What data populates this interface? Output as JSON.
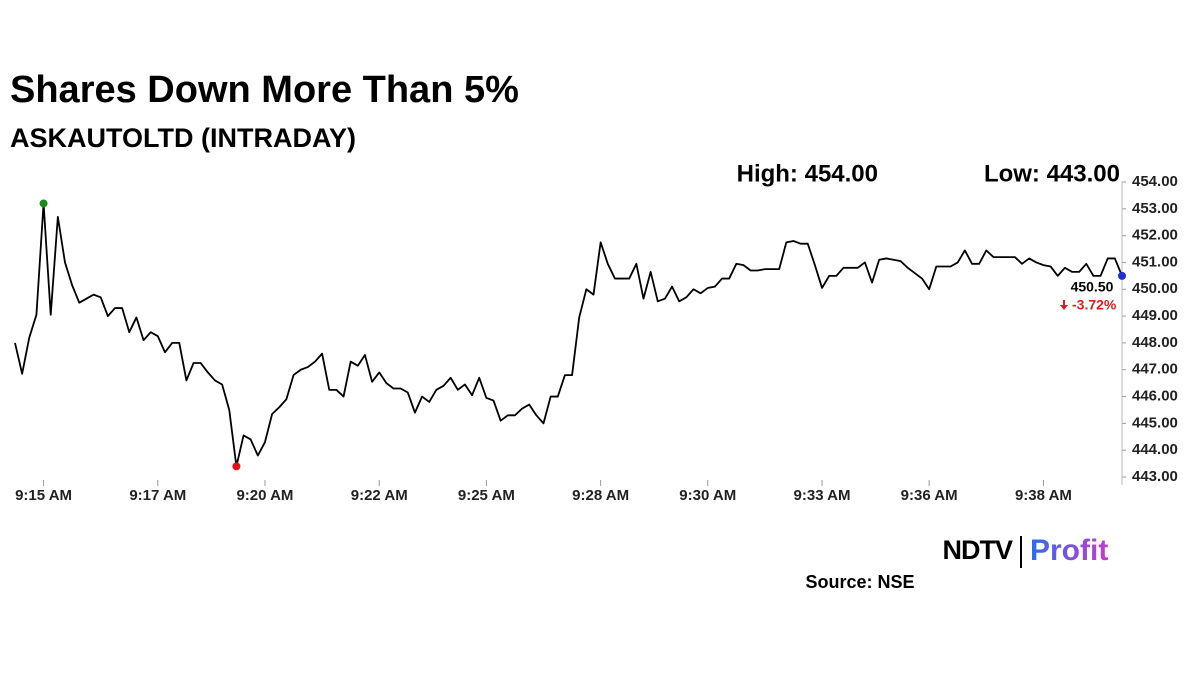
{
  "chart_data": {
    "type": "line",
    "title": "Shares Down More Than 5%",
    "subtitle": "ASKAUTOLTD (INTRADAY)",
    "high_text": "High: 454.00",
    "low_text": "Low: 443.00",
    "last_label": "450.50",
    "change_label": "-3.72%",
    "source": "Source: NSE",
    "logo": {
      "left": "NDTV",
      "right": "Profit"
    },
    "categories": [
      null,
      null,
      null,
      null,
      "9:15 AM",
      null,
      null,
      null,
      null,
      null,
      null,
      null,
      null,
      null,
      null,
      null,
      null,
      null,
      null,
      null,
      "9:17 AM",
      null,
      null,
      null,
      null,
      null,
      null,
      null,
      null,
      null,
      null,
      null,
      null,
      null,
      null,
      "9:20 AM",
      null,
      null,
      null,
      null,
      null,
      null,
      null,
      null,
      null,
      null,
      null,
      null,
      null,
      null,
      null,
      "9:22 AM",
      null,
      null,
      null,
      null,
      null,
      null,
      null,
      null,
      null,
      null,
      null,
      null,
      null,
      null,
      "9:25 AM",
      null,
      null,
      null,
      null,
      null,
      null,
      null,
      null,
      null,
      null,
      null,
      null,
      null,
      null,
      null,
      "9:28 AM",
      null,
      null,
      null,
      null,
      null,
      null,
      null,
      null,
      null,
      null,
      null,
      null,
      null,
      null,
      "9:30 AM",
      null,
      null,
      null,
      null,
      null,
      null,
      null,
      null,
      null,
      null,
      null,
      null,
      null,
      null,
      null,
      "9:33 AM",
      null,
      null,
      null,
      null,
      null,
      null,
      null,
      null,
      null,
      null,
      null,
      null,
      null,
      null,
      "9:36 AM",
      null,
      null,
      null,
      null,
      null,
      null,
      null,
      null,
      null,
      null,
      null,
      null,
      null,
      null,
      null,
      "9:38 AM",
      null,
      null,
      null,
      null,
      null,
      null,
      null,
      null,
      null,
      null,
      null
    ],
    "values": [
      448.0,
      446.85,
      448.2,
      449.05,
      453.2,
      449.05,
      452.7,
      451.0,
      450.15,
      449.5,
      449.65,
      449.8,
      449.7,
      449.0,
      449.3,
      449.3,
      448.4,
      448.95,
      448.1,
      448.4,
      448.25,
      447.65,
      448.0,
      448.0,
      446.6,
      447.25,
      447.25,
      446.9,
      446.6,
      446.45,
      445.5,
      443.4,
      444.55,
      444.4,
      443.8,
      444.3,
      445.35,
      445.6,
      445.9,
      446.8,
      447.0,
      447.1,
      447.3,
      447.6,
      446.25,
      446.25,
      446.0,
      447.3,
      447.15,
      447.55,
      446.55,
      446.9,
      446.5,
      446.3,
      446.3,
      446.15,
      445.4,
      446.0,
      445.8,
      446.25,
      446.4,
      446.7,
      446.25,
      446.45,
      446.05,
      446.7,
      445.95,
      445.85,
      445.1,
      445.3,
      445.3,
      445.55,
      445.7,
      445.3,
      445.0,
      446.0,
      446.0,
      446.8,
      446.8,
      448.95,
      450.0,
      449.8,
      451.75,
      450.95,
      450.4,
      450.4,
      450.4,
      450.95,
      449.65,
      450.65,
      449.55,
      449.65,
      450.1,
      449.55,
      449.7,
      450.0,
      449.85,
      450.05,
      450.1,
      450.4,
      450.4,
      450.95,
      450.9,
      450.7,
      450.7,
      450.75,
      450.75,
      450.75,
      451.75,
      451.8,
      451.7,
      451.7,
      450.9,
      450.05,
      450.5,
      450.5,
      450.8,
      450.8,
      450.8,
      451.0,
      450.25,
      451.1,
      451.15,
      451.1,
      451.05,
      450.8,
      450.6,
      450.4,
      450.0,
      450.85,
      450.85,
      450.85,
      451.0,
      451.45,
      450.95,
      450.95,
      451.45,
      451.2,
      451.2,
      451.2,
      451.2,
      450.95,
      451.15,
      451.0,
      450.9,
      450.85,
      450.5,
      450.8,
      450.65,
      450.65,
      450.95,
      450.5,
      450.5,
      451.15,
      451.15,
      450.5
    ],
    "color": "#000000",
    "high_color": "#1a8a1a",
    "low_color": "#e01010",
    "last_color": "#1f2fd0",
    "change_color": "#d42020",
    "ylim": [
      443,
      454
    ],
    "yticks": [
      {
        "value": 443,
        "label": "443.00"
      },
      {
        "value": 444,
        "label": "444.00"
      },
      {
        "value": 445,
        "label": "445.00"
      },
      {
        "value": 446,
        "label": "446.00"
      },
      {
        "value": 447,
        "label": "447.00"
      },
      {
        "value": 448,
        "label": "448.00"
      },
      {
        "value": 449,
        "label": "449.00"
      },
      {
        "value": 450,
        "label": "450.00"
      },
      {
        "value": 451,
        "label": "451.00"
      },
      {
        "value": 452,
        "label": "452.00"
      },
      {
        "value": 453,
        "label": "453.00"
      },
      {
        "value": 454,
        "label": "454.00"
      }
    ],
    "grid": false
  }
}
